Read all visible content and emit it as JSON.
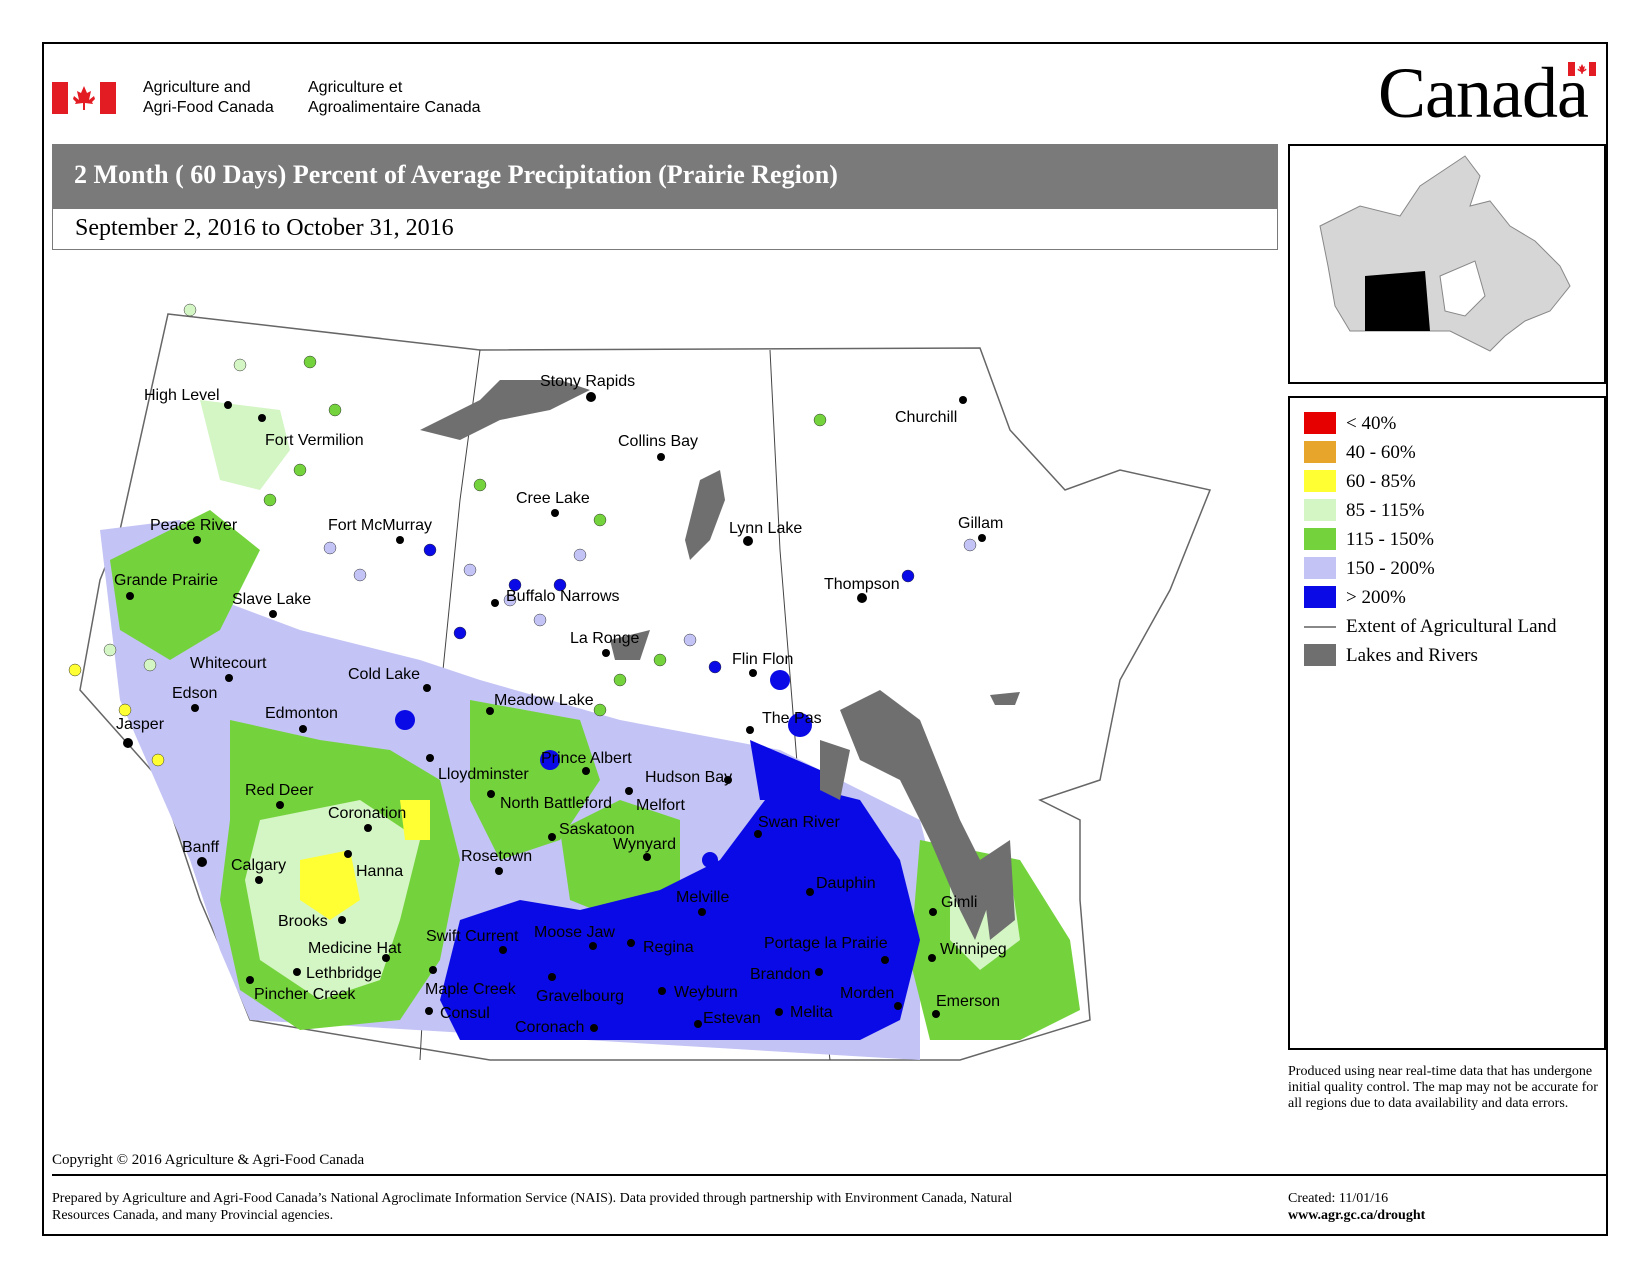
{
  "header": {
    "department_en": [
      "Agriculture and",
      "Agri-Food Canada"
    ],
    "department_fr": [
      "Agriculture et",
      "Agroalimentaire Canada"
    ],
    "wordmark": "Canada"
  },
  "map": {
    "title": "2 Month ( 60 Days) Percent of Average Precipitation (Prairie Region)",
    "date_range": "September 2, 2016 to October 31, 2016"
  },
  "legend": {
    "items": [
      {
        "label": "< 40%",
        "color": "#e60000"
      },
      {
        "label": "40 - 60%",
        "color": "#e8a52c"
      },
      {
        "label": "60 - 85%",
        "color": "#ffff33"
      },
      {
        "label": "85 - 115%",
        "color": "#d4f5c4"
      },
      {
        "label": "115 - 150%",
        "color": "#74d33c"
      },
      {
        "label": "150 - 200%",
        "color": "#c3c3f5"
      },
      {
        "label": "> 200%",
        "color": "#0a0ae6"
      }
    ],
    "extent_label": "Extent of Agricultural Land",
    "lakes_label": "Lakes and Rivers",
    "lakes_color": "#6f6f6f"
  },
  "places": [
    {
      "name": "Stony Rapids"
    },
    {
      "name": "Collins Bay"
    },
    {
      "name": "Churchill"
    },
    {
      "name": "High Level"
    },
    {
      "name": "Fort Vermilion"
    },
    {
      "name": "Cree Lake"
    },
    {
      "name": "Lynn Lake"
    },
    {
      "name": "Gillam"
    },
    {
      "name": "Peace River"
    },
    {
      "name": "Fort McMurray"
    },
    {
      "name": "Grande Prairie"
    },
    {
      "name": "Slave Lake"
    },
    {
      "name": "Buffalo Narrows"
    },
    {
      "name": "Thompson"
    },
    {
      "name": "La Ronge"
    },
    {
      "name": "Whitecourt"
    },
    {
      "name": "Flin Flon"
    },
    {
      "name": "Cold Lake"
    },
    {
      "name": "Edson"
    },
    {
      "name": "Meadow Lake"
    },
    {
      "name": "Edmonton"
    },
    {
      "name": "Jasper"
    },
    {
      "name": "The Pas"
    },
    {
      "name": "Prince Albert"
    },
    {
      "name": "Lloydminster"
    },
    {
      "name": "Hudson Bay"
    },
    {
      "name": "Red Deer"
    },
    {
      "name": "North Battleford"
    },
    {
      "name": "Melfort"
    },
    {
      "name": "Coronation"
    },
    {
      "name": "Saskatoon"
    },
    {
      "name": "Swan River"
    },
    {
      "name": "Wynyard"
    },
    {
      "name": "Banff"
    },
    {
      "name": "Rosetown"
    },
    {
      "name": "Hanna"
    },
    {
      "name": "Calgary"
    },
    {
      "name": "Dauphin"
    },
    {
      "name": "Melville"
    },
    {
      "name": "Gimli"
    },
    {
      "name": "Brooks"
    },
    {
      "name": "Swift Current"
    },
    {
      "name": "Moose Jaw"
    },
    {
      "name": "Portage la Prairie"
    },
    {
      "name": "Regina"
    },
    {
      "name": "Medicine Hat"
    },
    {
      "name": "Winnipeg"
    },
    {
      "name": "Lethbridge"
    },
    {
      "name": "Brandon"
    },
    {
      "name": "Maple Creek"
    },
    {
      "name": "Weyburn"
    },
    {
      "name": "Gravelbourg"
    },
    {
      "name": "Pincher Creek"
    },
    {
      "name": "Morden"
    },
    {
      "name": "Emerson"
    },
    {
      "name": "Consul"
    },
    {
      "name": "Estevan"
    },
    {
      "name": "Melita"
    },
    {
      "name": "Coronach"
    }
  ],
  "footer": {
    "note": "Produced using near real-time data that has undergone initial quality control.  The map may not be accurate for all regions due to data availability and data errors.",
    "copyright": "Copyright © 2016 Agriculture & Agri-Food Canada",
    "prepared": "Prepared by Agriculture and Agri-Food Canada’s National Agroclimate Information Service (NAIS).   Data provided through partnership with Environment Canada, Natural Resources Canada, and many Provincial agencies.",
    "created": "Created: 11/01/16",
    "url": "www.agr.gc.ca/drought"
  }
}
